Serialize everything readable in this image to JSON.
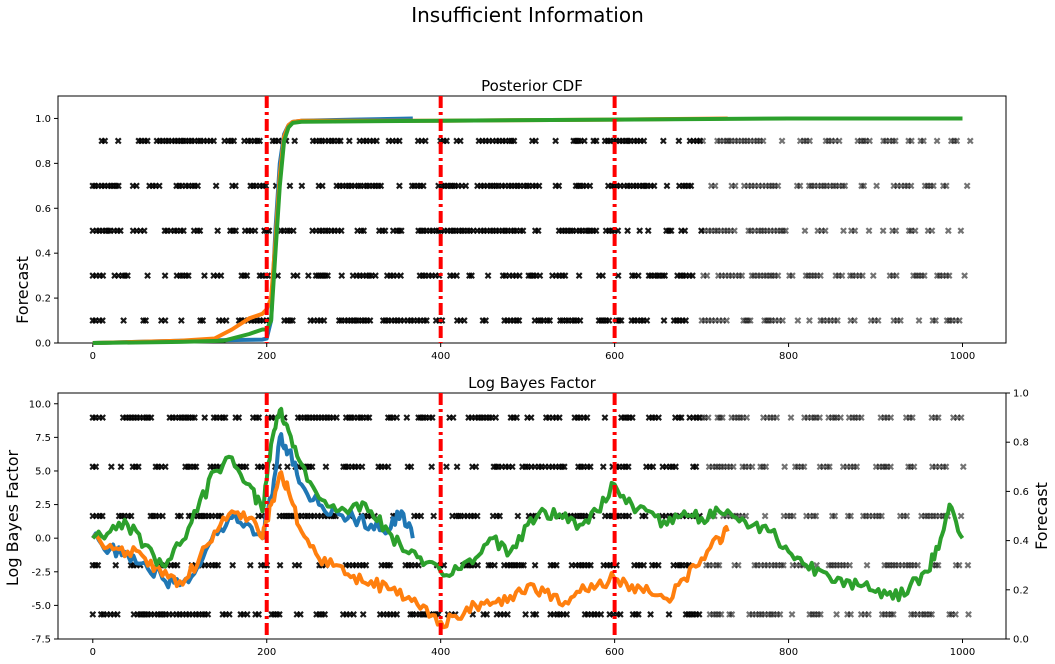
{
  "figure": {
    "title": "Insufficient Information"
  },
  "chart_data": [
    {
      "type": "line",
      "title": "Posterior CDF",
      "xlabel": "",
      "ylabel": "Forecast",
      "xlim": [
        -40,
        1050
      ],
      "ylim": [
        0,
        1.1
      ],
      "xticks": [
        0,
        200,
        400,
        600,
        800,
        1000
      ],
      "yticks": [
        0.0,
        0.2,
        0.4,
        0.6,
        0.8,
        1.0
      ],
      "vlines": [
        200,
        400,
        600
      ],
      "vline_color": "#ff0000",
      "forecast_levels": [
        0.1,
        0.3,
        0.5,
        0.7,
        0.9
      ],
      "series": [
        {
          "color": "#1f77b4",
          "x": [
            0,
            100,
            195,
            200,
            205,
            210,
            215,
            220,
            225,
            230,
            240,
            300,
            368
          ],
          "values": [
            0.0,
            0.01,
            0.015,
            0.02,
            0.1,
            0.5,
            0.8,
            0.93,
            0.97,
            0.985,
            0.99,
            0.995,
            1.0
          ]
        },
        {
          "color": "#ff7f0e",
          "x": [
            0,
            100,
            140,
            160,
            180,
            195,
            200,
            205,
            210,
            215,
            220,
            225,
            230,
            240,
            400,
            600,
            730
          ],
          "values": [
            0.0,
            0.01,
            0.02,
            0.06,
            0.11,
            0.13,
            0.15,
            0.2,
            0.45,
            0.75,
            0.92,
            0.97,
            0.985,
            0.99,
            0.99,
            0.995,
            1.0
          ]
        },
        {
          "color": "#2ca02c",
          "x": [
            0,
            100,
            150,
            180,
            195,
            200,
            205,
            210,
            215,
            220,
            225,
            230,
            240,
            400,
            600,
            800,
            1000
          ],
          "values": [
            0.0,
            0.005,
            0.01,
            0.04,
            0.06,
            0.06,
            0.1,
            0.4,
            0.7,
            0.9,
            0.96,
            0.98,
            0.985,
            0.99,
            0.995,
            1.0,
            1.0
          ]
        }
      ]
    },
    {
      "type": "line",
      "title": "Log Bayes Factor",
      "xlabel": "",
      "ylabel": "Log Bayes Factor",
      "ylabel_right": "Forecast",
      "xlim": [
        -40,
        1050
      ],
      "ylim": [
        -7.5,
        10.8
      ],
      "ylim_right": [
        0,
        1
      ],
      "xticks": [
        0,
        200,
        400,
        600,
        800,
        1000
      ],
      "yticks": [
        -7.5,
        -5.0,
        -2.5,
        0.0,
        2.5,
        5.0,
        7.5,
        10.0
      ],
      "yticks_right": [
        0.0,
        0.2,
        0.4,
        0.6,
        0.8,
        1.0
      ],
      "vlines": [
        200,
        400,
        600
      ],
      "vline_color": "#ff0000",
      "forecast_levels": [
        0.1,
        0.3,
        0.5,
        0.7,
        0.9
      ],
      "series": [
        {
          "color": "#1f77b4",
          "x": [
            0,
            20,
            40,
            60,
            80,
            100,
            120,
            140,
            160,
            180,
            195,
            205,
            215,
            225,
            240,
            260,
            280,
            300,
            320,
            340,
            355,
            368
          ],
          "values": [
            0,
            -0.8,
            -1.2,
            -1.8,
            -3.0,
            -3.5,
            -2.2,
            0.5,
            1.5,
            1.0,
            0.0,
            3.0,
            7.5,
            6.5,
            4.0,
            2.5,
            2.0,
            1.5,
            1.0,
            0.5,
            2.0,
            0.0
          ]
        },
        {
          "color": "#ff7f0e",
          "x": [
            0,
            20,
            40,
            60,
            80,
            100,
            120,
            140,
            160,
            180,
            195,
            205,
            215,
            225,
            240,
            260,
            280,
            300,
            320,
            340,
            360,
            380,
            400,
            420,
            440,
            460,
            480,
            500,
            520,
            540,
            560,
            580,
            600,
            620,
            640,
            660,
            680,
            700,
            720,
            730
          ],
          "values": [
            0,
            -0.5,
            -1.0,
            -1.5,
            -2.8,
            -3.2,
            -2.0,
            0.5,
            2.0,
            1.5,
            0.0,
            2.5,
            4.8,
            3.5,
            0.5,
            -1.5,
            -2.0,
            -2.8,
            -3.2,
            -3.8,
            -4.5,
            -5.0,
            -6.2,
            -6.0,
            -5.0,
            -4.8,
            -4.3,
            -3.5,
            -4.0,
            -5.0,
            -4.0,
            -3.5,
            -3.0,
            -3.5,
            -4.0,
            -4.5,
            -3.0,
            -1.5,
            0.0,
            0.5
          ]
        },
        {
          "color": "#2ca02c",
          "x": [
            0,
            20,
            40,
            60,
            80,
            100,
            120,
            140,
            160,
            180,
            195,
            205,
            215,
            225,
            240,
            260,
            280,
            300,
            320,
            340,
            360,
            380,
            400,
            420,
            440,
            460,
            480,
            500,
            520,
            540,
            560,
            580,
            600,
            620,
            640,
            660,
            680,
            700,
            720,
            740,
            760,
            780,
            800,
            820,
            840,
            860,
            880,
            900,
            920,
            940,
            960,
            975,
            985,
            1000
          ],
          "values": [
            0,
            0.5,
            1.0,
            -0.5,
            -2.0,
            -0.5,
            2.0,
            5.0,
            6.0,
            4.0,
            2.0,
            7.0,
            9.5,
            8.0,
            5.5,
            3.0,
            2.0,
            2.5,
            2.0,
            0.5,
            -1.0,
            -2.0,
            -2.5,
            -2.3,
            -1.5,
            0.0,
            -1.0,
            1.0,
            2.0,
            1.5,
            1.0,
            2.0,
            4.0,
            2.5,
            2.0,
            1.0,
            2.0,
            1.5,
            2.0,
            1.5,
            1.0,
            0.5,
            -1.0,
            -2.0,
            -2.5,
            -3.0,
            -3.5,
            -4.0,
            -4.5,
            -3.5,
            -2.5,
            0.0,
            2.5,
            0.0
          ]
        }
      ]
    }
  ]
}
